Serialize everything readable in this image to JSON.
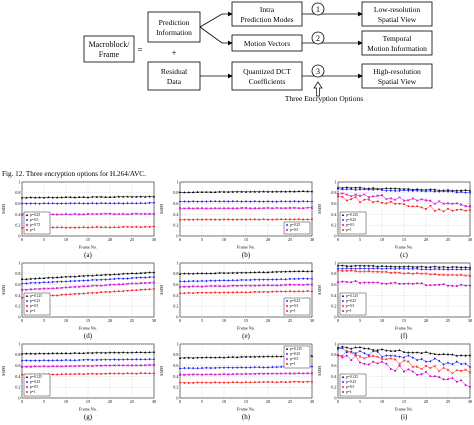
{
  "diagram": {
    "macroblock_line1": "Macroblock/",
    "macroblock_line2": "Frame",
    "equals": "=",
    "plus": "+",
    "prediction_line1": "Prediction",
    "prediction_line2": "Information",
    "residual_line1": "Residual",
    "residual_line2": "Data",
    "intra_line1": "Intra",
    "intra_line2": "Prediction Modes",
    "motion_vectors": "Motion Vectors",
    "quantized_line1": "Quantized DCT",
    "quantized_line2": "Coefficients",
    "circle1": "1",
    "circle2": "2",
    "circle3": "3",
    "lowres_line1": "Low-resolution",
    "lowres_line2": "Spatial View",
    "temporal_line1": "Temporal",
    "temporal_line2": "Motion Information",
    "highres_line1": "High-resolution",
    "highres_line2": "Spatial View",
    "options_label": "Three Encryption Options"
  },
  "caption": "Fig. 12.   Three encryption options for H.264/AVC.",
  "plot_common": {
    "xlabel": "Frame No.",
    "ylabel": "SSIM",
    "xticks": [
      "0",
      "5",
      "10",
      "15",
      "20",
      "25",
      "30"
    ],
    "yticks": [
      "0",
      "0.2",
      "0.4",
      "0.6",
      "0.8",
      "1"
    ]
  },
  "colors": {
    "s1": "#000000",
    "s2": "#1a1aff",
    "s3": "#cc00cc",
    "s4": "#ff2020"
  },
  "chart_data": [
    {
      "type": "line",
      "label": "(a)",
      "legend_position": "bottom-left",
      "xlabel": "Frame No.",
      "ylabel": "SSIM",
      "xlim": [
        0,
        30
      ],
      "ylim": [
        0,
        1
      ],
      "series": [
        {
          "name": "p=0.25",
          "color": "#000000",
          "y_start": 0.71,
          "y_end": 0.73,
          "noise": 0.005
        },
        {
          "name": "p=0.5",
          "color": "#1a1aff",
          "y_start": 0.6,
          "y_end": 0.61,
          "noise": 0.005
        },
        {
          "name": "p=0.75",
          "color": "#cc00cc",
          "y_start": 0.4,
          "y_end": 0.41,
          "noise": 0.005
        },
        {
          "name": "p=1",
          "color": "#ff2020",
          "y_start": 0.15,
          "y_end": 0.17,
          "noise": 0.005
        }
      ]
    },
    {
      "type": "line",
      "label": "(b)",
      "legend_position": "bottom-right",
      "xlabel": "Frame No.",
      "ylabel": "SSIM",
      "xlim": [
        0,
        30
      ],
      "ylim": [
        0,
        1
      ],
      "series": [
        {
          "name": "",
          "color": "#000000",
          "y_start": 0.81,
          "y_end": 0.83,
          "noise": 0.004
        },
        {
          "name": "p=0.25",
          "color": "#1a1aff",
          "y_start": 0.64,
          "y_end": 0.64,
          "noise": 0.004
        },
        {
          "name": "p=0.5",
          "color": "#cc00cc",
          "y_start": 0.51,
          "y_end": 0.52,
          "noise": 0.004
        },
        {
          "name": "",
          "color": "#ff2020",
          "y_start": 0.3,
          "y_end": 0.31,
          "noise": 0.004
        }
      ]
    },
    {
      "type": "line",
      "label": "(c)",
      "legend_position": "bottom-left",
      "xlabel": "Frame No.",
      "ylabel": "SSIM",
      "xlim": [
        0,
        30
      ],
      "ylim": [
        0,
        1
      ],
      "series": [
        {
          "name": "p=0.125",
          "color": "#000000",
          "y_start": 0.9,
          "y_end": 0.84,
          "noise": 0.01
        },
        {
          "name": "p=0.25",
          "color": "#1a1aff",
          "y_start": 0.87,
          "y_end": 0.81,
          "noise": 0.01
        },
        {
          "name": "p=0.5",
          "color": "#cc00cc",
          "y_start": 0.8,
          "y_end": 0.55,
          "noise": 0.04
        },
        {
          "name": "p=1",
          "color": "#ff2020",
          "y_start": 0.72,
          "y_end": 0.44,
          "noise": 0.05
        }
      ]
    },
    {
      "type": "line",
      "label": "(d)",
      "legend_position": "bottom-left",
      "xlabel": "Frame No.",
      "ylabel": "SSIM",
      "xlim": [
        0,
        30
      ],
      "ylim": [
        0,
        1
      ],
      "series": [
        {
          "name": "p=0.125",
          "color": "#000000",
          "y_start": 0.7,
          "y_end": 0.83,
          "noise": 0.004
        },
        {
          "name": "p=0.25",
          "color": "#1a1aff",
          "y_start": 0.62,
          "y_end": 0.74,
          "noise": 0.004
        },
        {
          "name": "p=0.5",
          "color": "#cc00cc",
          "y_start": 0.5,
          "y_end": 0.64,
          "noise": 0.004
        },
        {
          "name": "p=1",
          "color": "#ff2020",
          "y_start": 0.36,
          "y_end": 0.52,
          "noise": 0.004
        }
      ]
    },
    {
      "type": "line",
      "label": "(e)",
      "legend_position": "bottom-right",
      "xlabel": "Frame No.",
      "ylabel": "SSIM",
      "xlim": [
        0,
        30
      ],
      "ylim": [
        0,
        1
      ],
      "series": [
        {
          "name": "",
          "color": "#000000",
          "y_start": 0.8,
          "y_end": 0.85,
          "noise": 0.004
        },
        {
          "name": "p=0.25",
          "color": "#1a1aff",
          "y_start": 0.66,
          "y_end": 0.71,
          "noise": 0.004
        },
        {
          "name": "p=0.5",
          "color": "#cc00cc",
          "y_start": 0.56,
          "y_end": 0.6,
          "noise": 0.004
        },
        {
          "name": "p=1",
          "color": "#ff2020",
          "y_start": 0.44,
          "y_end": 0.48,
          "noise": 0.004
        }
      ]
    },
    {
      "type": "line",
      "label": "(f)",
      "legend_position": "bottom-left",
      "xlabel": "Frame No.",
      "ylabel": "SSIM",
      "xlim": [
        0,
        30
      ],
      "ylim": [
        0,
        1
      ],
      "series": [
        {
          "name": "p=0.125",
          "color": "#000000",
          "y_start": 0.95,
          "y_end": 0.92,
          "noise": 0.006
        },
        {
          "name": "p=0.25",
          "color": "#1a1aff",
          "y_start": 0.9,
          "y_end": 0.88,
          "noise": 0.006
        },
        {
          "name": "p=0.5",
          "color": "#ff2020",
          "y_start": 0.86,
          "y_end": 0.77,
          "noise": 0.01
        },
        {
          "name": "p=1",
          "color": "#cc00cc",
          "y_start": 0.66,
          "y_end": 0.58,
          "noise": 0.02
        }
      ]
    },
    {
      "type": "line",
      "label": "(g)",
      "legend_position": "bottom-left",
      "xlabel": "Frame No.",
      "ylabel": "SSIM",
      "xlim": [
        0,
        30
      ],
      "ylim": [
        0,
        1
      ],
      "series": [
        {
          "name": "p=0.125",
          "color": "#000000",
          "y_start": 0.82,
          "y_end": 0.85,
          "noise": 0.004
        },
        {
          "name": "p=0.25",
          "color": "#1a1aff",
          "y_start": 0.69,
          "y_end": 0.72,
          "noise": 0.004
        },
        {
          "name": "p=0.5",
          "color": "#cc00cc",
          "y_start": 0.58,
          "y_end": 0.61,
          "noise": 0.004
        },
        {
          "name": "p=1",
          "color": "#ff2020",
          "y_start": 0.43,
          "y_end": 0.46,
          "noise": 0.004
        }
      ]
    },
    {
      "type": "line",
      "label": "(h)",
      "legend_position": "top-right",
      "xlabel": "Frame No.",
      "ylabel": "SSIM",
      "xlim": [
        0,
        30
      ],
      "ylim": [
        0,
        1
      ],
      "series": [
        {
          "name": "p=0.125",
          "color": "#000000",
          "y_start": 0.74,
          "y_end": 0.78,
          "noise": 0.004
        },
        {
          "name": "p=0.25",
          "color": "#1a1aff",
          "y_start": 0.55,
          "y_end": 0.58,
          "noise": 0.004
        },
        {
          "name": "p=0.5",
          "color": "#cc00cc",
          "y_start": 0.43,
          "y_end": 0.46,
          "noise": 0.004
        },
        {
          "name": "p=1",
          "color": "#ff2020",
          "y_start": 0.28,
          "y_end": 0.3,
          "noise": 0.004
        }
      ]
    },
    {
      "type": "line",
      "label": "(i)",
      "legend_position": "bottom-left",
      "xlabel": "Frame No.",
      "ylabel": "SSIM",
      "xlim": [
        0,
        30
      ],
      "ylim": [
        0,
        1
      ],
      "series": [
        {
          "name": "p=0.125",
          "color": "#000000",
          "y_start": 0.95,
          "y_end": 0.78,
          "noise": 0.02
        },
        {
          "name": "p=0.25",
          "color": "#1a1aff",
          "y_start": 0.9,
          "y_end": 0.6,
          "noise": 0.05
        },
        {
          "name": "p=0.5",
          "color": "#ff2020",
          "y_start": 0.85,
          "y_end": 0.45,
          "noise": 0.06
        },
        {
          "name": "p=1",
          "color": "#cc00cc",
          "y_start": 0.8,
          "y_end": 0.25,
          "noise": 0.06
        }
      ]
    }
  ]
}
